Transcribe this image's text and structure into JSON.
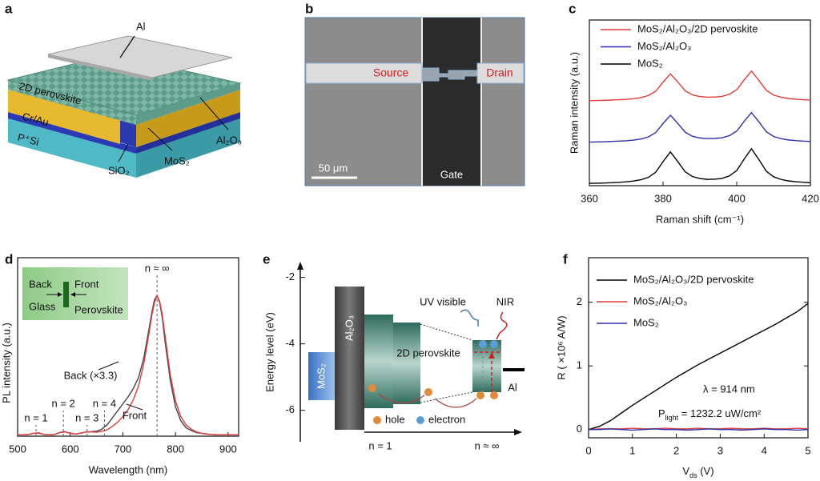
{
  "figure": {
    "a": {
      "label": "a",
      "al": "Al",
      "perovskite": "2D perovskite",
      "crau": "Cr/Au",
      "psi": "P⁺Si",
      "sio2": "SiO₂",
      "mos2": "MoS₂",
      "al2o3": "Al₂O₃"
    },
    "b": {
      "label": "b",
      "source": "Source",
      "drain": "Drain",
      "gate": "Gate",
      "scale": "50 μm"
    },
    "e": {
      "label": "e",
      "ylabel": "Energy level (eV)",
      "ylim": [
        -6.9,
        -1.6
      ],
      "yticks": [
        -2,
        -4,
        -6
      ],
      "mos2": "MoS₂",
      "al2o3": "Al₂O₃",
      "perovskite": "2D perovskite",
      "uv": "UV visible",
      "nir": "NIR",
      "al": "Al",
      "hole": "hole",
      "electron": "electron",
      "n1": "n = 1",
      "ninf": "n ≈ ∞"
    }
  },
  "chart_data": [
    {
      "type": "line",
      "panel": "c",
      "xlabel": "Raman shift (cm⁻¹)",
      "ylabel": "Raman intensity (a.u.)",
      "x": [
        360,
        362,
        364,
        366,
        368,
        370,
        372,
        374,
        376,
        378,
        380,
        382,
        384,
        386,
        388,
        390,
        392,
        394,
        396,
        398,
        400,
        402,
        404,
        406,
        408,
        410,
        412,
        414,
        416,
        418,
        420
      ],
      "xlim": [
        360,
        420
      ],
      "xticks": [
        360,
        380,
        400,
        420
      ],
      "ylim": [
        0,
        10
      ],
      "legend": "upper left",
      "series": [
        {
          "name": "MoS₂/Al₂O₃/2D pervoskite",
          "color": "#e03c3c",
          "values": [
            5.13,
            5.14,
            5.15,
            5.17,
            5.19,
            5.21,
            5.25,
            5.32,
            5.44,
            5.7,
            6.25,
            6.75,
            6.26,
            5.73,
            5.48,
            5.38,
            5.34,
            5.35,
            5.39,
            5.52,
            5.79,
            6.38,
            6.91,
            6.36,
            5.76,
            5.47,
            5.34,
            5.26,
            5.22,
            5.19,
            5.17
          ]
        },
        {
          "name": "MoS₂/Al₂O₃",
          "color": "#2f2fb0",
          "values": [
            2.63,
            2.64,
            2.65,
            2.67,
            2.69,
            2.71,
            2.75,
            2.82,
            2.94,
            3.2,
            3.75,
            4.25,
            3.76,
            3.23,
            2.98,
            2.88,
            2.84,
            2.85,
            2.89,
            3.02,
            3.29,
            3.88,
            4.41,
            3.86,
            3.26,
            2.97,
            2.84,
            2.76,
            2.72,
            2.69,
            2.67
          ]
        },
        {
          "name": "MoS₂",
          "color": "#000000",
          "values": [
            0.14,
            0.15,
            0.16,
            0.18,
            0.2,
            0.23,
            0.28,
            0.36,
            0.5,
            0.81,
            1.45,
            2.04,
            1.46,
            0.84,
            0.55,
            0.43,
            0.38,
            0.39,
            0.44,
            0.59,
            0.91,
            1.6,
            2.23,
            1.58,
            0.88,
            0.54,
            0.38,
            0.29,
            0.24,
            0.21,
            0.18
          ]
        }
      ]
    },
    {
      "type": "line",
      "panel": "d",
      "xlabel": "Wavelength (nm)",
      "ylabel": "PL intensity (a.u.)",
      "x": [
        500,
        510,
        520,
        530,
        540,
        550,
        560,
        570,
        580,
        590,
        600,
        610,
        620,
        630,
        640,
        650,
        660,
        670,
        680,
        690,
        700,
        710,
        720,
        730,
        740,
        750,
        755,
        760,
        765,
        770,
        775,
        780,
        790,
        800,
        810,
        820,
        830,
        840,
        850,
        860,
        870,
        880,
        890,
        900,
        910,
        920
      ],
      "xlim": [
        500,
        920
      ],
      "xticks": [
        500,
        600,
        700,
        800,
        900
      ],
      "ylim": [
        0,
        1.27
      ],
      "series": [
        {
          "name": "Back (×3.3)",
          "color": "#444444",
          "values": [
            0.01,
            0.01,
            0.012,
            0.02,
            0.024,
            0.012,
            0.01,
            0.012,
            0.026,
            0.032,
            0.02,
            0.015,
            0.022,
            0.03,
            0.032,
            0.035,
            0.05,
            0.08,
            0.13,
            0.18,
            0.23,
            0.28,
            0.34,
            0.42,
            0.56,
            0.77,
            0.88,
            0.97,
            1.0,
            0.95,
            0.84,
            0.68,
            0.4,
            0.21,
            0.11,
            0.06,
            0.04,
            0.025,
            0.02,
            0.015,
            0.012,
            0.01,
            0.01,
            0.01,
            0.01,
            0.01
          ]
        },
        {
          "name": "Front",
          "color": "#e03c3c",
          "values": [
            0.01,
            0.01,
            0.012,
            0.02,
            0.022,
            0.012,
            0.01,
            0.012,
            0.025,
            0.03,
            0.02,
            0.015,
            0.022,
            0.03,
            0.03,
            0.028,
            0.035,
            0.045,
            0.07,
            0.1,
            0.14,
            0.19,
            0.26,
            0.36,
            0.52,
            0.74,
            0.86,
            0.95,
            1.0,
            0.96,
            0.86,
            0.72,
            0.44,
            0.25,
            0.14,
            0.08,
            0.05,
            0.03,
            0.02,
            0.015,
            0.012,
            0.01,
            0.01,
            0.01,
            0.01,
            0.01
          ]
        }
      ],
      "markers": [
        {
          "x": 535,
          "label": "n = 1"
        },
        {
          "x": 587,
          "label": "n = 2"
        },
        {
          "x": 632,
          "label": "n = 3"
        },
        {
          "x": 665,
          "label": "n = 4"
        },
        {
          "x": 765,
          "label": "n ≈ ∞"
        }
      ],
      "inset": [
        "Back",
        "Front",
        "Glass",
        "Perovskite"
      ]
    },
    {
      "type": "line",
      "panel": "f",
      "xlabel": {
        "main": "V",
        "sub": "ds",
        "rest": " (V)"
      },
      "ylabel": "R ( ×10⁶ A/W)",
      "x": [
        0,
        0.25,
        0.5,
        0.75,
        1,
        1.25,
        1.5,
        1.75,
        2,
        2.25,
        2.5,
        2.75,
        3,
        3.25,
        3.5,
        3.75,
        4,
        4.25,
        4.5,
        4.75,
        5
      ],
      "xlim": [
        0,
        5
      ],
      "xticks": [
        0,
        1,
        2,
        3,
        4,
        5
      ],
      "ylim": [
        -0.13,
        2.7
      ],
      "yticks": [
        0,
        1,
        2
      ],
      "legend": "upper left",
      "series": [
        {
          "name": "MoS₂/Al₂O₃/2D pervoskite",
          "color": "#000000",
          "values": [
            0,
            0.05,
            0.14,
            0.26,
            0.38,
            0.49,
            0.6,
            0.71,
            0.82,
            0.92,
            1.02,
            1.11,
            1.2,
            1.29,
            1.38,
            1.47,
            1.56,
            1.65,
            1.75,
            1.85,
            1.98
          ]
        },
        {
          "name": "MoS₂/Al₂O₃",
          "color": "#e03c3c",
          "values": [
            0,
            0.01,
            0.01,
            0.01,
            0.02,
            0.01,
            0.01,
            0.02,
            0.01,
            0.01,
            0.02,
            0.01,
            0.01,
            0.02,
            0.01,
            0.01,
            0.02,
            0.01,
            0.01,
            0.02,
            0.01
          ]
        },
        {
          "name": "MoS₂",
          "color": "#2f2fb0",
          "values": [
            0,
            0,
            0.01,
            0,
            -0.01,
            0,
            0.01,
            0,
            0,
            -0.01,
            0,
            0.01,
            0,
            0,
            -0.01,
            0,
            0.01,
            0,
            0,
            -0.01,
            0
          ]
        }
      ],
      "annotations": [
        "λ = 914 nm",
        {
          "main": "P",
          "sub": "light",
          "rest": " = 1232.2 uW/cm²"
        }
      ]
    }
  ]
}
